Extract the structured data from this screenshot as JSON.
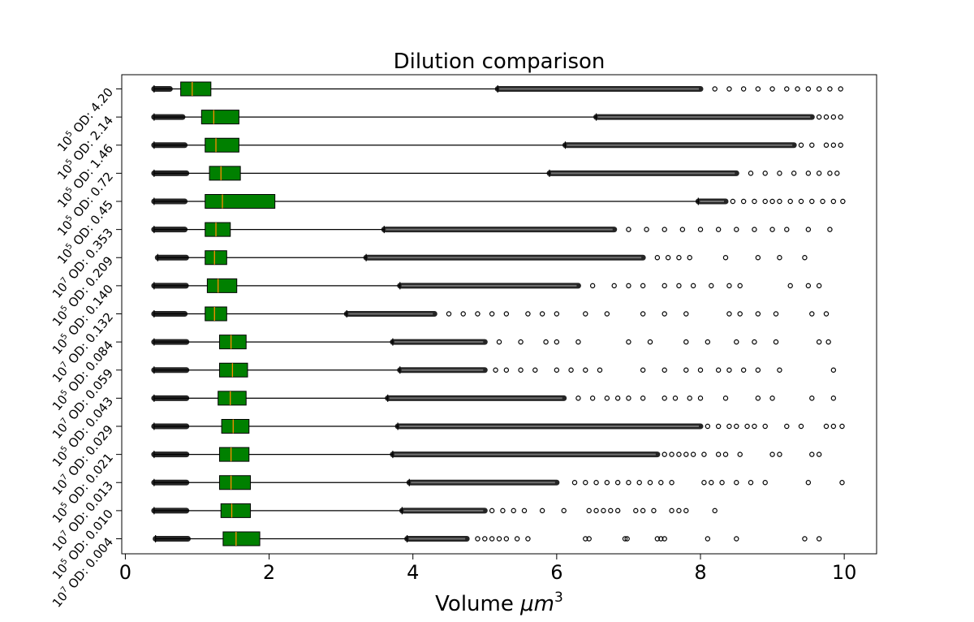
{
  "chart_data": {
    "type": "boxplot",
    "orientation": "horizontal",
    "title": "Dilution comparison",
    "xlabel_text": "Volume ",
    "xlabel_unit_base": "μm",
    "xlabel_unit_exp": "3",
    "ylabel": "",
    "xlim": [
      -0.05,
      10.45
    ],
    "xticks": [
      0,
      2,
      4,
      6,
      8,
      10
    ],
    "grid": false,
    "box_color": "#008000",
    "median_color": "#ff8c00",
    "outlier_color": "#000000",
    "categories": [
      {
        "exp": "7",
        "od": " OD: 0.004",
        "whisker_low": 0.42,
        "q1": 1.36,
        "median": 1.54,
        "q3": 1.87,
        "whisker_high": 3.92,
        "outlier_dense_end": 4.75,
        "outlier_spread": [
          4.9,
          5.0,
          5.1,
          5.2,
          5.3,
          5.45,
          5.6,
          6.4,
          6.45,
          6.95,
          6.98,
          7.4,
          7.45,
          7.5,
          8.1,
          8.5,
          9.45,
          9.65
        ]
      },
      {
        "exp": "5",
        "od": " OD: 0.010",
        "whisker_low": 0.4,
        "q1": 1.33,
        "median": 1.48,
        "q3": 1.74,
        "whisker_high": 3.85,
        "outlier_dense_end": 5.0,
        "outlier_spread": [
          5.1,
          5.25,
          5.4,
          5.55,
          5.8,
          6.1,
          6.45,
          6.55,
          6.65,
          6.75,
          6.85,
          7.1,
          7.2,
          7.35,
          7.6,
          7.7,
          7.8,
          8.2
        ]
      },
      {
        "exp": "7",
        "od": " OD: 0.013",
        "whisker_low": 0.4,
        "q1": 1.31,
        "median": 1.47,
        "q3": 1.74,
        "whisker_high": 3.95,
        "outlier_dense_end": 6.0,
        "outlier_spread": [
          6.25,
          6.4,
          6.55,
          6.7,
          6.85,
          7.0,
          7.15,
          7.3,
          7.45,
          7.6,
          8.05,
          8.15,
          8.3,
          8.5,
          8.7,
          8.9,
          9.5,
          9.97
        ]
      },
      {
        "exp": "5",
        "od": " OD: 0.021",
        "whisker_low": 0.4,
        "q1": 1.31,
        "median": 1.47,
        "q3": 1.72,
        "whisker_high": 3.72,
        "outlier_dense_end": 7.4,
        "outlier_spread": [
          7.5,
          7.6,
          7.7,
          7.8,
          7.9,
          8.05,
          8.25,
          8.35,
          8.55,
          9.0,
          9.1,
          9.55,
          9.65
        ]
      },
      {
        "exp": "7",
        "od": " OD: 0.029",
        "whisker_low": 0.4,
        "q1": 1.34,
        "median": 1.5,
        "q3": 1.72,
        "whisker_high": 3.79,
        "outlier_dense_end": 8.0,
        "outlier_spread": [
          8.1,
          8.25,
          8.4,
          8.5,
          8.65,
          8.75,
          8.9,
          9.2,
          9.4,
          9.75,
          9.85,
          9.97
        ]
      },
      {
        "exp": "5",
        "od": " OD: 0.043",
        "whisker_low": 0.4,
        "q1": 1.29,
        "median": 1.46,
        "q3": 1.68,
        "whisker_high": 3.65,
        "outlier_dense_end": 6.1,
        "outlier_spread": [
          6.3,
          6.5,
          6.7,
          6.85,
          7.0,
          7.2,
          7.5,
          7.65,
          7.85,
          8.0,
          8.35,
          8.8,
          9.0,
          9.55,
          9.85
        ]
      },
      {
        "exp": "7",
        "od": " OD: 0.059",
        "whisker_low": 0.4,
        "q1": 1.31,
        "median": 1.49,
        "q3": 1.7,
        "whisker_high": 3.82,
        "outlier_dense_end": 5.0,
        "outlier_spread": [
          5.15,
          5.3,
          5.5,
          5.7,
          6.0,
          6.2,
          6.4,
          6.6,
          7.2,
          7.5,
          7.8,
          8.0,
          8.25,
          8.4,
          8.6,
          8.8,
          9.1,
          9.85
        ]
      },
      {
        "exp": "5",
        "od": " OD: 0.084",
        "whisker_low": 0.4,
        "q1": 1.31,
        "median": 1.47,
        "q3": 1.68,
        "whisker_high": 3.72,
        "outlier_dense_end": 5.0,
        "outlier_spread": [
          5.2,
          5.5,
          5.85,
          6.0,
          6.3,
          7.0,
          7.3,
          7.8,
          8.1,
          8.5,
          8.75,
          9.05,
          9.65,
          9.78
        ]
      },
      {
        "exp": "7",
        "od": " OD: 0.132",
        "whisker_low": 0.4,
        "q1": 1.11,
        "median": 1.24,
        "q3": 1.41,
        "whisker_high": 3.08,
        "outlier_dense_end": 4.3,
        "outlier_spread": [
          4.5,
          4.7,
          4.9,
          5.1,
          5.3,
          5.6,
          5.8,
          6.0,
          6.4,
          6.7,
          7.2,
          7.5,
          7.8,
          8.4,
          8.55,
          8.8,
          9.05,
          9.55,
          9.75
        ]
      },
      {
        "exp": "5",
        "od": " OD: 0.140",
        "whisker_low": 0.4,
        "q1": 1.14,
        "median": 1.29,
        "q3": 1.55,
        "whisker_high": 3.82,
        "outlier_dense_end": 6.3,
        "outlier_spread": [
          6.5,
          6.8,
          7.0,
          7.2,
          7.5,
          7.7,
          7.9,
          8.15,
          8.4,
          8.55,
          9.25,
          9.5,
          9.65
        ]
      },
      {
        "exp": "5",
        "od": " OD: 0.209",
        "whisker_low": 0.45,
        "q1": 1.11,
        "median": 1.24,
        "q3": 1.41,
        "whisker_high": 3.35,
        "outlier_dense_end": 7.2,
        "outlier_spread": [
          7.4,
          7.55,
          7.7,
          7.85,
          8.35,
          8.8,
          9.1,
          9.45
        ]
      },
      {
        "exp": "7",
        "od": " OD: 0.353",
        "whisker_low": 0.4,
        "q1": 1.11,
        "median": 1.26,
        "q3": 1.46,
        "whisker_high": 3.6,
        "outlier_dense_end": 6.8,
        "outlier_spread": [
          7.0,
          7.25,
          7.5,
          7.75,
          8.0,
          8.25,
          8.5,
          8.75,
          9.0,
          9.2,
          9.5,
          9.8
        ]
      },
      {
        "exp": "5",
        "od": " OD: 0.45",
        "whisker_low": 0.4,
        "q1": 1.11,
        "median": 1.35,
        "q3": 2.08,
        "whisker_high": 7.97,
        "outlier_dense_end": 8.35,
        "outlier_spread": [
          8.45,
          8.6,
          8.75,
          8.9,
          9.0,
          9.1,
          9.25,
          9.4,
          9.55,
          9.7,
          9.85,
          9.98
        ]
      },
      {
        "exp": "5",
        "od": " OD: 0.72",
        "whisker_low": 0.4,
        "q1": 1.17,
        "median": 1.33,
        "q3": 1.6,
        "whisker_high": 5.9,
        "outlier_dense_end": 8.5,
        "outlier_spread": [
          8.7,
          8.9,
          9.1,
          9.3,
          9.5,
          9.65,
          9.8,
          9.9
        ]
      },
      {
        "exp": "5",
        "od": " OD: 1.46",
        "whisker_low": 0.4,
        "q1": 1.11,
        "median": 1.26,
        "q3": 1.58,
        "whisker_high": 6.12,
        "outlier_dense_end": 9.3,
        "outlier_spread": [
          9.4,
          9.55,
          9.75,
          9.85,
          9.95
        ]
      },
      {
        "exp": "5",
        "od": " OD: 2.14",
        "whisker_low": 0.4,
        "q1": 1.06,
        "median": 1.23,
        "q3": 1.58,
        "whisker_high": 6.55,
        "outlier_dense_end": 9.55,
        "outlier_spread": [
          9.65,
          9.75,
          9.85,
          9.95
        ]
      },
      {
        "exp": "5",
        "od": " OD: 4.20",
        "whisker_low": 0.4,
        "q1": 0.77,
        "median": 0.93,
        "q3": 1.19,
        "whisker_high": 5.18,
        "outlier_dense_end": 8.0,
        "outlier_spread": [
          8.2,
          8.4,
          8.6,
          8.8,
          9.0,
          9.2,
          9.35,
          9.5,
          9.65,
          9.8,
          9.95
        ]
      }
    ]
  }
}
